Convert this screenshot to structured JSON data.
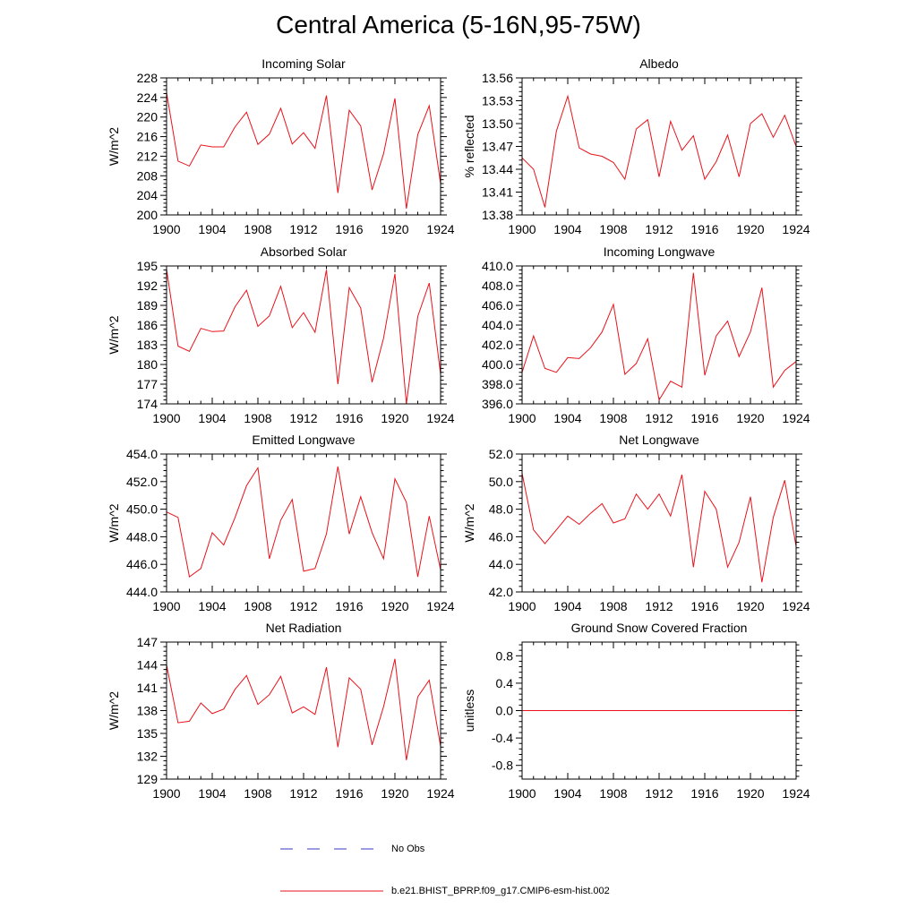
{
  "title": "Central America (5-16N,95-75W)",
  "legend": {
    "no_obs_label": "No Obs",
    "model_label": "b.e21.BHIST_BPRP.f09_g17.CMIP6-esm-hist.002",
    "model_color": "#e8121a",
    "obs_color": "#3a3ac8"
  },
  "chart_data": [
    {
      "type": "line",
      "title": "Incoming Solar",
      "ylabel": "W/m^2",
      "x": [
        1900,
        1901,
        1902,
        1903,
        1904,
        1905,
        1906,
        1907,
        1908,
        1909,
        1910,
        1911,
        1912,
        1913,
        1914,
        1915,
        1916,
        1917,
        1918,
        1919,
        1920,
        1921,
        1922,
        1923,
        1924
      ],
      "values": [
        225,
        211,
        210,
        214.3,
        213.9,
        213.9,
        218,
        221,
        214.4,
        216.5,
        221.8,
        214.5,
        216.8,
        213.6,
        224.4,
        204.5,
        221.4,
        218.2,
        205.1,
        212.5,
        223.8,
        201.3,
        216.4,
        222.3,
        206.4
      ],
      "ylim": [
        200,
        228
      ],
      "yticks": [
        "200",
        "204",
        "208",
        "212",
        "216",
        "220",
        "224",
        "228"
      ],
      "xticks": [
        "1900",
        "1904",
        "1908",
        "1912",
        "1916",
        "1920",
        "1924"
      ]
    },
    {
      "type": "line",
      "title": "Albedo",
      "ylabel": "% reflected",
      "x": [
        1900,
        1901,
        1902,
        1903,
        1904,
        1905,
        1906,
        1907,
        1908,
        1909,
        1910,
        1911,
        1912,
        1913,
        1914,
        1915,
        1916,
        1917,
        1918,
        1919,
        1920,
        1921,
        1922,
        1923,
        1924
      ],
      "values": [
        13.455,
        13.44,
        13.39,
        13.49,
        13.536,
        13.468,
        13.46,
        13.457,
        13.449,
        13.427,
        13.493,
        13.505,
        13.43,
        13.503,
        13.465,
        13.484,
        13.427,
        13.45,
        13.485,
        13.43,
        13.5,
        13.513,
        13.482,
        13.511,
        13.47
      ],
      "ylim": [
        13.38,
        13.56
      ],
      "yticks": [
        "13.38",
        "13.41",
        "13.44",
        "13.47",
        "13.50",
        "13.53",
        "13.56"
      ],
      "xticks": [
        "1900",
        "1904",
        "1908",
        "1912",
        "1916",
        "1920",
        "1924"
      ]
    },
    {
      "type": "line",
      "title": "Absorbed Solar",
      "ylabel": "W/m^2",
      "x": [
        1900,
        1901,
        1902,
        1903,
        1904,
        1905,
        1906,
        1907,
        1908,
        1909,
        1910,
        1911,
        1912,
        1913,
        1914,
        1915,
        1916,
        1917,
        1918,
        1919,
        1920,
        1921,
        1922,
        1923,
        1924
      ],
      "values": [
        194.5,
        182.8,
        182,
        185.5,
        185,
        185.1,
        188.8,
        191.3,
        185.8,
        187.4,
        191.9,
        185.6,
        187.9,
        184.9,
        194.4,
        177,
        191.7,
        188.6,
        177.3,
        184,
        193.8,
        174,
        187.3,
        192.4,
        178.5
      ],
      "ylim": [
        174,
        195
      ],
      "yticks": [
        "174",
        "177",
        "180",
        "183",
        "186",
        "189",
        "192",
        "195"
      ],
      "xticks": [
        "1900",
        "1904",
        "1908",
        "1912",
        "1916",
        "1920",
        "1924"
      ]
    },
    {
      "type": "line",
      "title": "Incoming Longwave",
      "ylabel": "",
      "x": [
        1900,
        1901,
        1902,
        1903,
        1904,
        1905,
        1906,
        1907,
        1908,
        1909,
        1910,
        1911,
        1912,
        1913,
        1914,
        1915,
        1916,
        1917,
        1918,
        1919,
        1920,
        1921,
        1922,
        1923,
        1924
      ],
      "values": [
        399.2,
        402.9,
        399.6,
        399.2,
        400.7,
        400.6,
        401.7,
        403.3,
        406.1,
        399,
        400.1,
        402.6,
        396.4,
        398.3,
        397.7,
        409.3,
        398.9,
        402.9,
        404.4,
        400.8,
        403.3,
        407.8,
        397.7,
        399.4,
        400.3
      ],
      "ylim": [
        396,
        410
      ],
      "yticks": [
        "396.0",
        "398.0",
        "400.0",
        "402.0",
        "404.0",
        "406.0",
        "408.0",
        "410.0"
      ],
      "xticks": [
        "1900",
        "1904",
        "1908",
        "1912",
        "1916",
        "1920",
        "1924"
      ]
    },
    {
      "type": "line",
      "title": "Emitted Longwave",
      "ylabel": "W/m^2",
      "x": [
        1900,
        1901,
        1902,
        1903,
        1904,
        1905,
        1906,
        1907,
        1908,
        1909,
        1910,
        1911,
        1912,
        1913,
        1914,
        1915,
        1916,
        1917,
        1918,
        1919,
        1920,
        1921,
        1922,
        1923,
        1924
      ],
      "values": [
        449.8,
        449.4,
        445.1,
        445.7,
        448.3,
        447.4,
        449.4,
        451.7,
        453,
        446.4,
        449.2,
        450.7,
        445.5,
        445.7,
        448.2,
        453.1,
        448.2,
        450.9,
        448.3,
        446.4,
        452.2,
        450.5,
        445.1,
        449.5,
        445.6
      ],
      "ylim": [
        444,
        454
      ],
      "yticks": [
        "444.0",
        "446.0",
        "448.0",
        "450.0",
        "452.0",
        "454.0"
      ],
      "xticks": [
        "1900",
        "1904",
        "1908",
        "1912",
        "1916",
        "1920",
        "1924"
      ]
    },
    {
      "type": "line",
      "title": "Net Longwave",
      "ylabel": "W/m^2",
      "x": [
        1900,
        1901,
        1902,
        1903,
        1904,
        1905,
        1906,
        1907,
        1908,
        1909,
        1910,
        1911,
        1912,
        1913,
        1914,
        1915,
        1916,
        1917,
        1918,
        1919,
        1920,
        1921,
        1922,
        1923,
        1924
      ],
      "values": [
        50.6,
        46.5,
        45.5,
        46.5,
        47.5,
        46.9,
        47.7,
        48.4,
        47,
        47.3,
        49.1,
        48,
        49.1,
        47.5,
        50.5,
        43.8,
        49.3,
        48,
        43.8,
        45.6,
        48.9,
        42.7,
        47.4,
        50.1,
        45.3
      ],
      "ylim": [
        42,
        52
      ],
      "yticks": [
        "42.0",
        "44.0",
        "46.0",
        "48.0",
        "50.0",
        "52.0"
      ],
      "xticks": [
        "1900",
        "1904",
        "1908",
        "1912",
        "1916",
        "1920",
        "1924"
      ]
    },
    {
      "type": "line",
      "title": "Net Radiation",
      "ylabel": "W/m^2",
      "x": [
        1900,
        1901,
        1902,
        1903,
        1904,
        1905,
        1906,
        1907,
        1908,
        1909,
        1910,
        1911,
        1912,
        1913,
        1914,
        1915,
        1916,
        1917,
        1918,
        1919,
        1920,
        1921,
        1922,
        1923,
        1924
      ],
      "values": [
        144,
        136.4,
        136.6,
        139,
        137.6,
        138.2,
        140.8,
        142.6,
        138.8,
        140.1,
        142.5,
        137.7,
        138.5,
        137.5,
        143.7,
        133.2,
        142.3,
        140.8,
        133.5,
        138.5,
        144.8,
        131.5,
        139.8,
        142,
        133.3
      ],
      "ylim": [
        129,
        147
      ],
      "yticks": [
        "129",
        "132",
        "135",
        "138",
        "141",
        "144",
        "147"
      ],
      "xticks": [
        "1900",
        "1904",
        "1908",
        "1912",
        "1916",
        "1920",
        "1924"
      ]
    },
    {
      "type": "line",
      "title": "Ground Snow Covered Fraction",
      "ylabel": "unitless",
      "x": [
        1900,
        1901,
        1902,
        1903,
        1904,
        1905,
        1906,
        1907,
        1908,
        1909,
        1910,
        1911,
        1912,
        1913,
        1914,
        1915,
        1916,
        1917,
        1918,
        1919,
        1920,
        1921,
        1922,
        1923,
        1924
      ],
      "values": [
        0,
        0,
        0,
        0,
        0,
        0,
        0,
        0,
        0,
        0,
        0,
        0,
        0,
        0,
        0,
        0,
        0,
        0,
        0,
        0,
        0,
        0,
        0,
        0,
        0
      ],
      "ylim": [
        -1.0,
        1.0
      ],
      "yticks": [
        "-0.8",
        "-0.4",
        "0.0",
        "0.4",
        "0.8"
      ],
      "yticks_values": [
        -0.8,
        -0.4,
        0.0,
        0.4,
        0.8
      ],
      "xticks": [
        "1900",
        "1904",
        "1908",
        "1912",
        "1916",
        "1920",
        "1924"
      ]
    }
  ]
}
